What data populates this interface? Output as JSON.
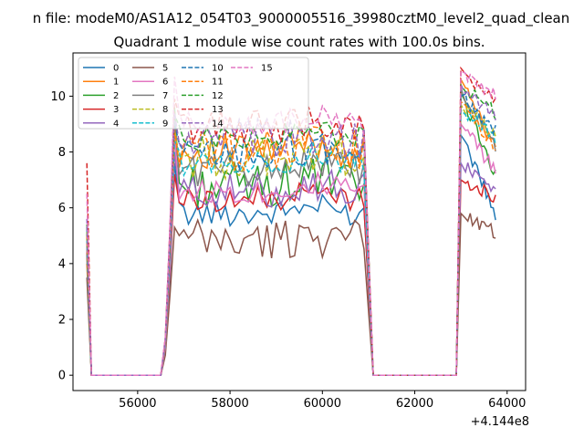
{
  "suptitle": "n file: modeM0/AS1A12_054T03_9000005516_39980cztM0_level2_quad_clean",
  "chart_data": {
    "type": "line",
    "title": "Quadrant 1 module wise count rates with 100.0s bins.",
    "xlabel": "",
    "ylabel": "",
    "x_offset_label": "+4.144e8",
    "xlim": [
      54600,
      64400
    ],
    "ylim": [
      -0.55,
      11.55
    ],
    "xticks": [
      56000,
      58000,
      60000,
      62000,
      64000
    ],
    "yticks": [
      0,
      2,
      4,
      6,
      8,
      10
    ],
    "grid": false,
    "legend": {
      "position": "top-left",
      "ncol": 4
    },
    "x_segments": {
      "flare1_start": 54900,
      "zero_start": 55000,
      "zero_end": 56500,
      "rise_start": 56500,
      "plateau_start": 56800,
      "plateau_end": 60900,
      "fall_end": 61100,
      "zero2_end": 62900,
      "flare2_start": 63000,
      "flare2_end": 63750,
      "step": 100
    },
    "series": [
      {
        "name": "0",
        "color": "#1f77b4",
        "dash": "solid",
        "start": 4.9,
        "level": 5.8,
        "peak1": 7.6,
        "peak2": 8.6,
        "end2": 5.8
      },
      {
        "name": "1",
        "color": "#ff7f0e",
        "dash": "solid",
        "start": 4.0,
        "level": 8.0,
        "peak1": 8.5,
        "peak2": 10.6,
        "end2": 8.1
      },
      {
        "name": "2",
        "color": "#2ca02c",
        "dash": "solid",
        "start": 4.6,
        "level": 6.8,
        "peak1": 9.6,
        "peak2": 10.1,
        "end2": 7.2
      },
      {
        "name": "3",
        "color": "#d62728",
        "dash": "solid",
        "start": 4.4,
        "level": 6.3,
        "peak1": 7.2,
        "peak2": 7.0,
        "end2": 6.4
      },
      {
        "name": "4",
        "color": "#9467bd",
        "dash": "solid",
        "start": 4.8,
        "level": 6.6,
        "peak1": 8.0,
        "peak2": 7.6,
        "end2": 6.6
      },
      {
        "name": "5",
        "color": "#8c564b",
        "dash": "solid",
        "start": 3.5,
        "level": 4.8,
        "peak1": 5.3,
        "peak2": 5.8,
        "end2": 5.1
      },
      {
        "name": "6",
        "color": "#e377c2",
        "dash": "solid",
        "start": 4.7,
        "level": 6.6,
        "peak1": 8.6,
        "peak2": 9.0,
        "end2": 7.3
      },
      {
        "name": "7",
        "color": "#7f7f7f",
        "dash": "solid",
        "start": 4.3,
        "level": 7.4,
        "peak1": 9.3,
        "peak2": 10.3,
        "end2": 8.2
      },
      {
        "name": "8",
        "color": "#bcbd22",
        "dash": "dashed",
        "start": 5.1,
        "level": 7.8,
        "peak1": 8.8,
        "peak2": 9.7,
        "end2": 8.6
      },
      {
        "name": "9",
        "color": "#17becf",
        "dash": "dashed",
        "start": 4.9,
        "level": 7.6,
        "peak1": 8.4,
        "peak2": 9.5,
        "end2": 8.5
      },
      {
        "name": "10",
        "color": "#1f77b4",
        "dash": "dashed",
        "start": 5.3,
        "level": 7.9,
        "peak1": 9.0,
        "peak2": 10.0,
        "end2": 8.8
      },
      {
        "name": "11",
        "color": "#ff7f0e",
        "dash": "dashed",
        "start": 5.0,
        "level": 8.1,
        "peak1": 8.8,
        "peak2": 9.8,
        "end2": 8.0
      },
      {
        "name": "12",
        "color": "#2ca02c",
        "dash": "dashed",
        "start": 5.4,
        "level": 8.5,
        "peak1": 9.3,
        "peak2": 10.4,
        "end2": 9.4
      },
      {
        "name": "13",
        "color": "#d62728",
        "dash": "dashed",
        "start": 7.6,
        "level": 8.9,
        "peak1": 9.9,
        "peak2": 11.0,
        "end2": 9.8
      },
      {
        "name": "14",
        "color": "#9467bd",
        "dash": "dashed",
        "start": 5.6,
        "level": 8.4,
        "peak1": 9.4,
        "peak2": 10.4,
        "end2": 9.2
      },
      {
        "name": "15",
        "color": "#e377c2",
        "dash": "dashed",
        "start": 6.5,
        "level": 9.0,
        "peak1": 10.7,
        "peak2": 10.9,
        "end2": 10.0
      }
    ]
  }
}
